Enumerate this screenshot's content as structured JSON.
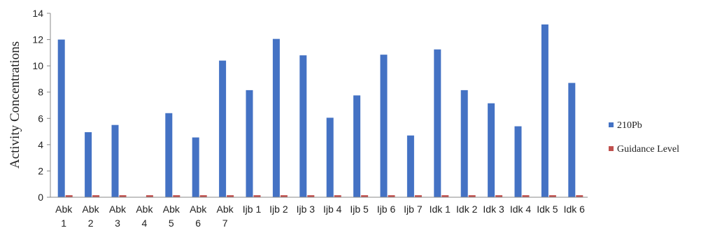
{
  "chart_data": {
    "type": "bar",
    "ylabel": "Activity Concentrations",
    "xlabel": "",
    "ylim": [
      0,
      14
    ],
    "yticks": [
      0,
      2,
      4,
      6,
      8,
      10,
      12,
      14
    ],
    "grid": false,
    "legend_position": "right",
    "categories": [
      [
        "Abk",
        "1"
      ],
      [
        "Abk",
        "2"
      ],
      [
        "Abk",
        "3"
      ],
      [
        "Abk",
        "4"
      ],
      [
        "Abk",
        "5"
      ],
      [
        "Abk",
        "6"
      ],
      [
        "Abk",
        "7"
      ],
      [
        "Ijb 1"
      ],
      [
        "Ijb 2"
      ],
      [
        "Ijb 3"
      ],
      [
        "Ijb 4"
      ],
      [
        "Ijb 5"
      ],
      [
        "Ijb 6"
      ],
      [
        "Ijb 7"
      ],
      [
        "Idk 1"
      ],
      [
        "Idk 2"
      ],
      [
        "Idk 3"
      ],
      [
        "Idk 4"
      ],
      [
        "Idk 5"
      ],
      [
        "Idk 6"
      ]
    ],
    "series": [
      {
        "name": "210Pb",
        "color": "#4472C4",
        "values": [
          12.0,
          4.95,
          5.5,
          0.0,
          6.4,
          4.55,
          10.4,
          8.15,
          12.05,
          10.8,
          6.05,
          7.75,
          10.85,
          4.7,
          11.25,
          8.15,
          7.15,
          5.4,
          13.15,
          8.7
        ]
      },
      {
        "name": "Guidance Level",
        "color": "#C0504D",
        "values": [
          0.1,
          0.1,
          0.1,
          0.1,
          0.1,
          0.1,
          0.1,
          0.1,
          0.1,
          0.1,
          0.1,
          0.1,
          0.1,
          0.1,
          0.1,
          0.1,
          0.1,
          0.1,
          0.1,
          0.1
        ]
      }
    ]
  }
}
